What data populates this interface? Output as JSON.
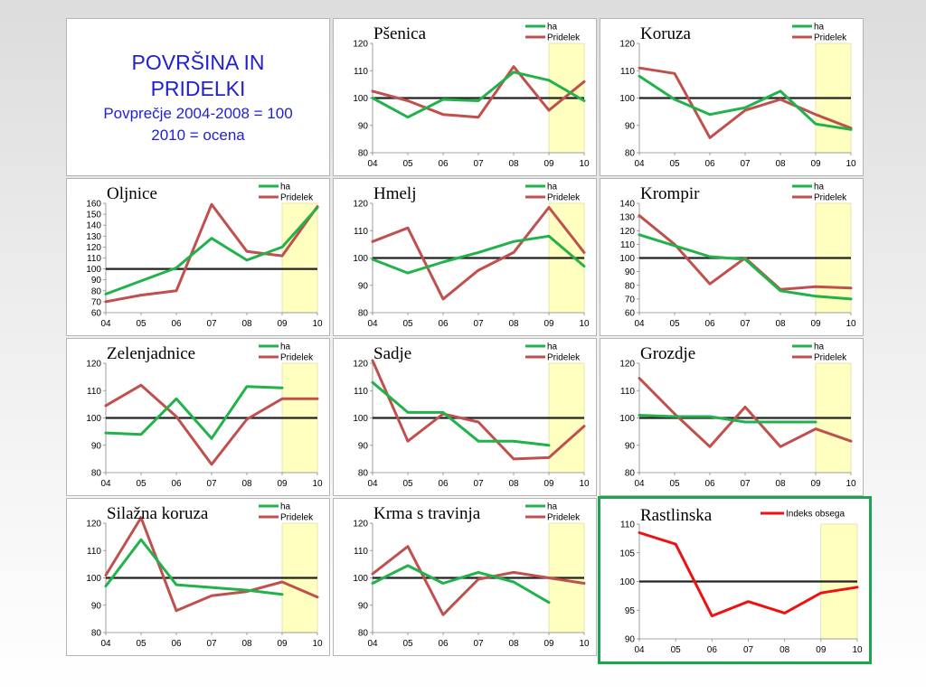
{
  "header": {
    "title": "POVRŠINA IN PRIDELKI",
    "subtitle_1": "Povprečje 2004-2008 = 100",
    "subtitle_2": "2010 = ocena"
  },
  "colors": {
    "ha": "#22b24c",
    "pridelek": "#c0504d",
    "indeks": "#ee1111",
    "estimate_band": "#ffffc0",
    "baseline": "#222222",
    "highlight_border": "#1aa64a"
  },
  "chart_data": [
    {
      "type": "line",
      "title": "Pšenica",
      "categories": [
        "04",
        "05",
        "06",
        "07",
        "08",
        "09",
        "10"
      ],
      "ylim": [
        80,
        120
      ],
      "yticks": [
        80,
        90,
        100,
        110,
        120
      ],
      "estimate_from": "09",
      "baseline": 100,
      "series": [
        {
          "name": "ha",
          "values": [
            100,
            93,
            99.5,
            99,
            109.5,
            106.5,
            99
          ]
        },
        {
          "name": "Pridelek",
          "values": [
            102.5,
            99,
            94,
            93,
            111.5,
            95.5,
            106
          ]
        }
      ]
    },
    {
      "type": "line",
      "title": "Koruza",
      "categories": [
        "04",
        "05",
        "06",
        "07",
        "08",
        "09",
        "10"
      ],
      "ylim": [
        80,
        120
      ],
      "yticks": [
        80,
        90,
        100,
        110,
        120
      ],
      "estimate_from": "09",
      "baseline": 100,
      "series": [
        {
          "name": "ha",
          "values": [
            108,
            99.5,
            94,
            96.5,
            102.5,
            90.5,
            88.5
          ]
        },
        {
          "name": "Pridelek",
          "values": [
            111,
            109,
            85.5,
            95.5,
            99.5,
            94,
            89
          ]
        }
      ]
    },
    {
      "type": "line",
      "title": "Oljnice",
      "categories": [
        "04",
        "05",
        "06",
        "07",
        "08",
        "09",
        "10"
      ],
      "ylim": [
        60,
        160
      ],
      "yticks": [
        60,
        70,
        80,
        90,
        100,
        110,
        120,
        130,
        140,
        150,
        160
      ],
      "estimate_from": "09",
      "baseline": 100,
      "series": [
        {
          "name": "ha",
          "values": [
            77,
            89,
            101,
            128,
            108,
            120,
            156
          ]
        },
        {
          "name": "Pridelek",
          "values": [
            70,
            76,
            80,
            159,
            116,
            112,
            157
          ]
        }
      ]
    },
    {
      "type": "line",
      "title": "Hmelj",
      "categories": [
        "04",
        "05",
        "06",
        "07",
        "08",
        "09",
        "10"
      ],
      "ylim": [
        80,
        120
      ],
      "yticks": [
        80,
        90,
        100,
        110,
        120
      ],
      "estimate_from": "09",
      "baseline": 100,
      "series": [
        {
          "name": "ha",
          "values": [
            99.5,
            94.5,
            98.5,
            102,
            106,
            108,
            97
          ]
        },
        {
          "name": "Pridelek",
          "values": [
            106,
            111,
            85,
            95.5,
            102,
            118.5,
            102
          ]
        }
      ]
    },
    {
      "type": "line",
      "title": "Krompir",
      "categories": [
        "04",
        "05",
        "06",
        "07",
        "08",
        "09",
        "10"
      ],
      "ylim": [
        60,
        140
      ],
      "yticks": [
        60,
        70,
        80,
        90,
        100,
        110,
        120,
        130,
        140
      ],
      "estimate_from": "09",
      "baseline": 100,
      "series": [
        {
          "name": "ha",
          "values": [
            117,
            109,
            101,
            99,
            76,
            72,
            70
          ]
        },
        {
          "name": "Pridelek",
          "values": [
            131,
            110,
            81,
            100,
            77,
            79,
            78
          ]
        }
      ]
    },
    {
      "type": "line",
      "title": "Zelenjadnice",
      "categories": [
        "04",
        "05",
        "06",
        "07",
        "08",
        "09",
        "10"
      ],
      "ylim": [
        80,
        120
      ],
      "yticks": [
        80,
        90,
        100,
        110,
        120
      ],
      "estimate_from": "09",
      "baseline": 100,
      "series": [
        {
          "name": "ha",
          "values": [
            94.5,
            94,
            107,
            92.5,
            111.5,
            111,
            null
          ]
        },
        {
          "name": "Pridelek",
          "values": [
            104.5,
            112,
            100.5,
            83,
            99.5,
            107,
            107
          ]
        }
      ]
    },
    {
      "type": "line",
      "title": "Sadje",
      "categories": [
        "04",
        "05",
        "06",
        "07",
        "08",
        "09",
        "10"
      ],
      "ylim": [
        80,
        120
      ],
      "yticks": [
        80,
        90,
        100,
        110,
        120
      ],
      "estimate_from": "09",
      "baseline": 100,
      "series": [
        {
          "name": "ha",
          "values": [
            113,
            102,
            102,
            91.5,
            91.5,
            90,
            null
          ]
        },
        {
          "name": "Pridelek",
          "values": [
            121,
            91.5,
            101.5,
            98.5,
            85,
            85.5,
            97
          ]
        }
      ]
    },
    {
      "type": "line",
      "title": "Grozdje",
      "categories": [
        "04",
        "05",
        "06",
        "07",
        "08",
        "09",
        "10"
      ],
      "ylim": [
        80,
        120
      ],
      "yticks": [
        80,
        90,
        100,
        110,
        120
      ],
      "estimate_from": "09",
      "baseline": 100,
      "series": [
        {
          "name": "ha",
          "values": [
            101,
            100.5,
            100.5,
            98.5,
            98.5,
            98.5,
            null
          ]
        },
        {
          "name": "Pridelek",
          "values": [
            114.5,
            101.5,
            89.5,
            104,
            89.5,
            96,
            91.5
          ]
        }
      ]
    },
    {
      "type": "line",
      "title": "Silažna koruza",
      "categories": [
        "04",
        "05",
        "06",
        "07",
        "08",
        "09",
        "10"
      ],
      "ylim": [
        80,
        120
      ],
      "yticks": [
        80,
        90,
        100,
        110,
        120
      ],
      "estimate_from": "09",
      "baseline": 100,
      "series": [
        {
          "name": "ha",
          "values": [
            97,
            114,
            97.5,
            96.5,
            95.5,
            94,
            null
          ]
        },
        {
          "name": "Pridelek",
          "values": [
            101,
            122,
            88,
            93.5,
            95,
            98.5,
            93
          ]
        }
      ]
    },
    {
      "type": "line",
      "title": "Krma s travinja",
      "categories": [
        "04",
        "05",
        "06",
        "07",
        "08",
        "09",
        "10"
      ],
      "ylim": [
        80,
        120
      ],
      "yticks": [
        80,
        90,
        100,
        110,
        120
      ],
      "estimate_from": "09",
      "baseline": 100,
      "series": [
        {
          "name": "ha",
          "values": [
            98,
            104.5,
            98,
            102,
            98.5,
            91,
            null
          ]
        },
        {
          "name": "Pridelek",
          "values": [
            101.5,
            111.5,
            86.5,
            99.5,
            102,
            100,
            98
          ]
        }
      ]
    },
    {
      "type": "line",
      "title": "Rastlinska",
      "categories": [
        "04",
        "05",
        "06",
        "07",
        "08",
        "09",
        "10"
      ],
      "ylim": [
        90,
        110
      ],
      "yticks": [
        90,
        95,
        100,
        105,
        110
      ],
      "estimate_from": "09",
      "baseline": 100,
      "highlight": true,
      "series": [
        {
          "name": "Indeks obsega",
          "values": [
            108.5,
            106.5,
            94,
            96.5,
            94.5,
            98,
            99
          ]
        }
      ]
    }
  ]
}
